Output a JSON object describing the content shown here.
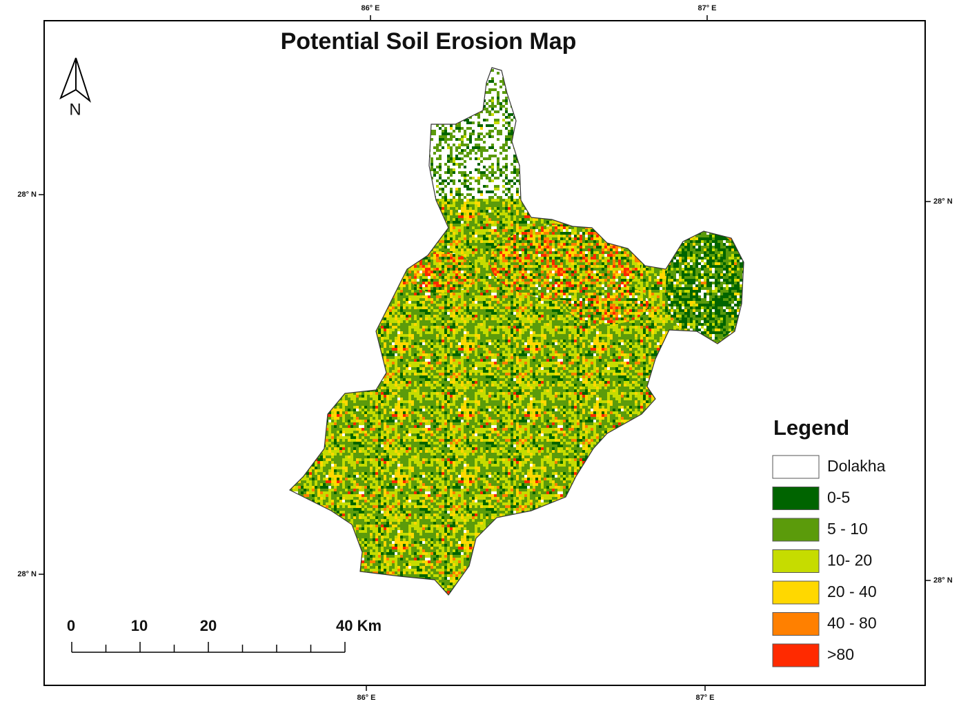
{
  "map": {
    "title": "Potential Soil Erosion Map",
    "north_label": "N",
    "graticule": {
      "top": [
        "86° E",
        "87° E"
      ],
      "bottom": [
        "86° E",
        "87° E"
      ],
      "left": [
        "28° N",
        "28° N"
      ],
      "right": [
        "28° N",
        "28° N"
      ]
    },
    "legend": {
      "title": "Legend",
      "items": [
        {
          "label": "Dolakha",
          "color": "#ffffff"
        },
        {
          "label": "0-5",
          "color": "#006400"
        },
        {
          "label": "5 - 10",
          "color": "#5b9b0b"
        },
        {
          "label": "10- 20",
          "color": "#c6dc00"
        },
        {
          "label": "20 - 40",
          "color": "#ffd800"
        },
        {
          "label": "40 - 80",
          "color": "#ff8000"
        },
        {
          "label": ">80",
          "color": "#ff2a00"
        }
      ]
    },
    "scale_bar": {
      "labels": [
        "0",
        "10",
        "20",
        "40 Km"
      ]
    }
  }
}
